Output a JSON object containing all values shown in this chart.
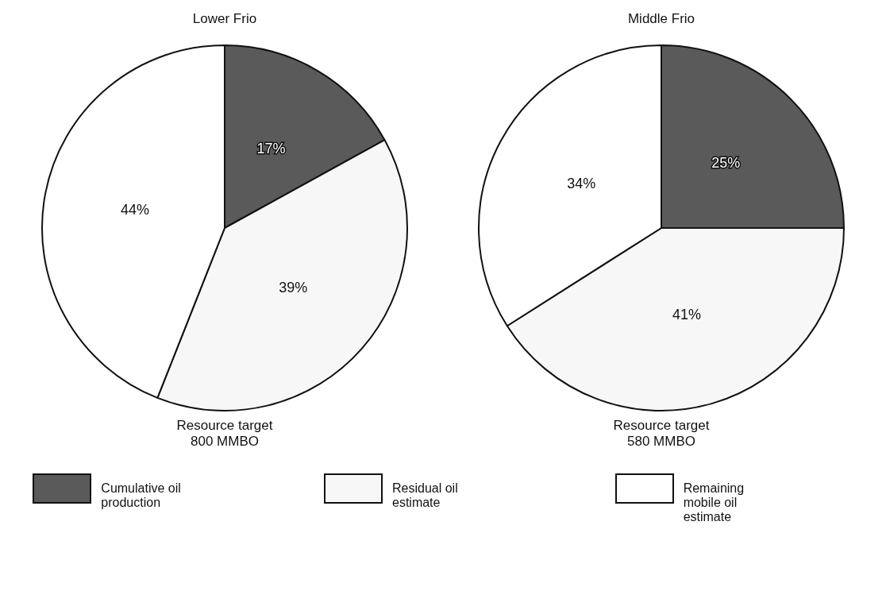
{
  "chart_data": [
    {
      "type": "pie",
      "title": "Lower Frio",
      "categories": [
        "Cumulative oil production",
        "Residual oil estimate",
        "Remaining mobile oil estimate"
      ],
      "values": [
        17,
        39,
        44
      ],
      "colors": [
        "#5a5a5a",
        "#f7f7f7",
        "#ffffff"
      ],
      "value_labels": [
        "17%",
        "39%",
        "44%"
      ],
      "annotations": [
        "Resource target\n800 MMBO"
      ],
      "legend": "bottom"
    },
    {
      "type": "pie",
      "title": "Middle Frio",
      "categories": [
        null,
        null,
        null
      ],
      "values": [
        25,
        41,
        34
      ],
      "colors": [
        "#5a5a5a",
        "#f7f7f7",
        "#ffffff"
      ],
      "value_labels": [
        "25%",
        "41%",
        "34%"
      ],
      "annotations": [
        "Resource target\n580 MMBO"
      ]
    }
  ]
}
